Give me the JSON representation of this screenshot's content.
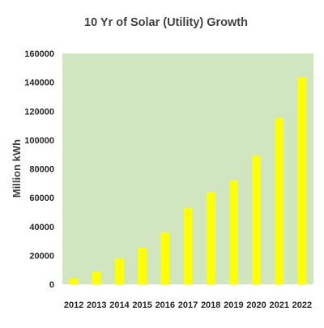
{
  "chart_data": {
    "type": "bar",
    "title": "10 Yr of Solar (Utility) Growth",
    "xlabel": "",
    "ylabel": "Million kWh",
    "categories": [
      "2012",
      "2013",
      "2014",
      "2015",
      "2016",
      "2017",
      "2018",
      "2019",
      "2020",
      "2021",
      "2022"
    ],
    "values": [
      4000,
      9000,
      18000,
      25000,
      36000,
      53000,
      64000,
      72000,
      89000,
      115000,
      143500
    ],
    "ylim": [
      0,
      160000
    ],
    "yticks": [
      "0",
      "20000",
      "40000",
      "60000",
      "80000",
      "100000",
      "120000",
      "140000",
      "160000"
    ],
    "grid": false,
    "legend": "none",
    "colors": {
      "bar": "#ffff00",
      "plot_background": "#cfe6c0",
      "text": "#262626",
      "title": "#404040"
    }
  }
}
